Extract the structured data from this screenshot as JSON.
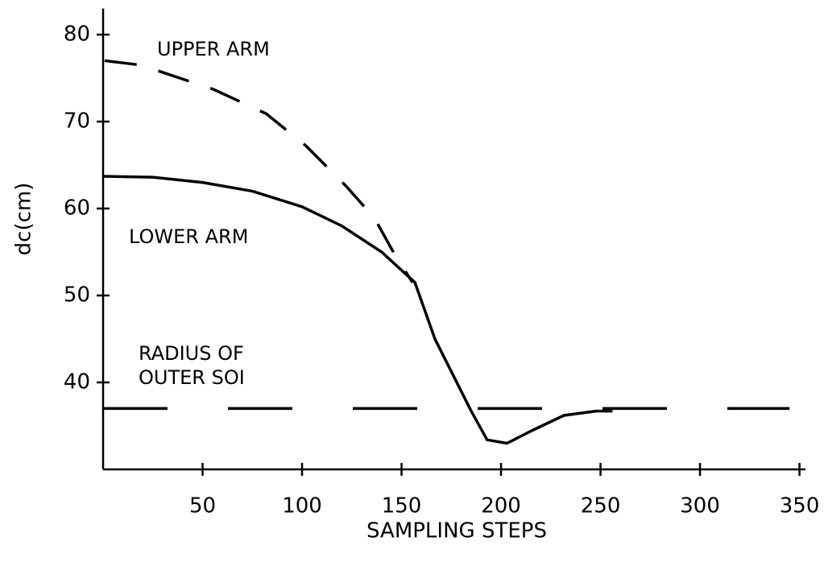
{
  "chart_data": {
    "type": "line",
    "xlabel": "SAMPLING STEPS",
    "ylabel": "dc(cm)",
    "xlim": [
      0,
      353
    ],
    "ylim": [
      30,
      83
    ],
    "xticks": [
      50,
      100,
      150,
      200,
      250,
      300,
      350
    ],
    "yticks": [
      40,
      50,
      60,
      70,
      80
    ],
    "series": [
      {
        "color": "#000000",
        "dash": true,
        "x": [
          0.8,
          19,
          55.5,
          82,
          102,
          122,
          136.4,
          146.6,
          155.5
        ],
        "values": [
          77.0,
          76.5,
          73.7,
          70.9,
          67.2,
          62.6,
          58.9,
          54.7,
          51.5
        ]
      },
      {
        "color": "#000000",
        "dash": false,
        "x": [
          0,
          25,
          50,
          75,
          100,
          120,
          140,
          156.7,
          166.8,
          185,
          193,
          203,
          215,
          231.6,
          247.8,
          256
        ],
        "values": [
          63.7,
          63.6,
          63,
          62,
          60.2,
          58,
          55,
          51.5,
          45,
          36.7,
          33.4,
          33,
          34.4,
          36.2,
          36.7,
          36.7
        ]
      },
      {
        "color": "#000000",
        "dash": true,
        "x": [
          0,
          345
        ],
        "values": [
          37,
          37
        ]
      }
    ],
    "annotations": [
      "UPPER ARM",
      "LOWER ARM",
      "RADIUS OF",
      "OUTER SOI"
    ]
  }
}
